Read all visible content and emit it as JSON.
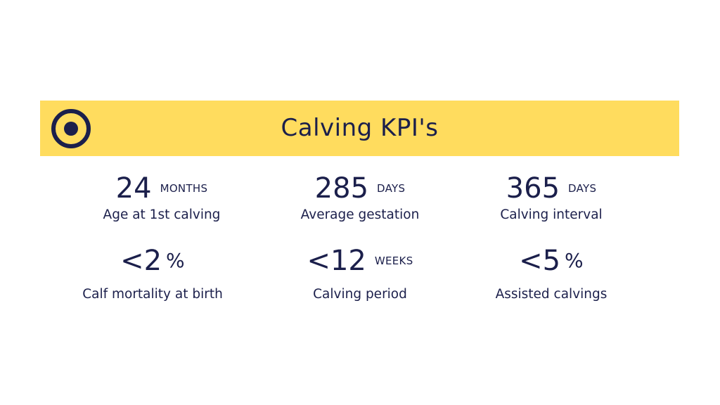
{
  "slide": {
    "title": "Calving KPI's",
    "icon": "target-icon",
    "colors": {
      "banner": "#ffdc5e",
      "text": "#1b1f4b"
    }
  },
  "kpis": [
    {
      "value": "24",
      "unit": "MONTHS",
      "label": "Age at 1st calving"
    },
    {
      "value": "285",
      "unit": "DAYS",
      "label": "Average gestation"
    },
    {
      "value": "365",
      "unit": "DAYS",
      "label": "Calving interval"
    },
    {
      "value": "<2",
      "unit": "%",
      "label": "Calf mortality at birth"
    },
    {
      "value": "<12",
      "unit": "WEEKS",
      "label": "Calving period"
    },
    {
      "value": "<5",
      "unit": "%",
      "label": "Assisted calvings"
    }
  ]
}
